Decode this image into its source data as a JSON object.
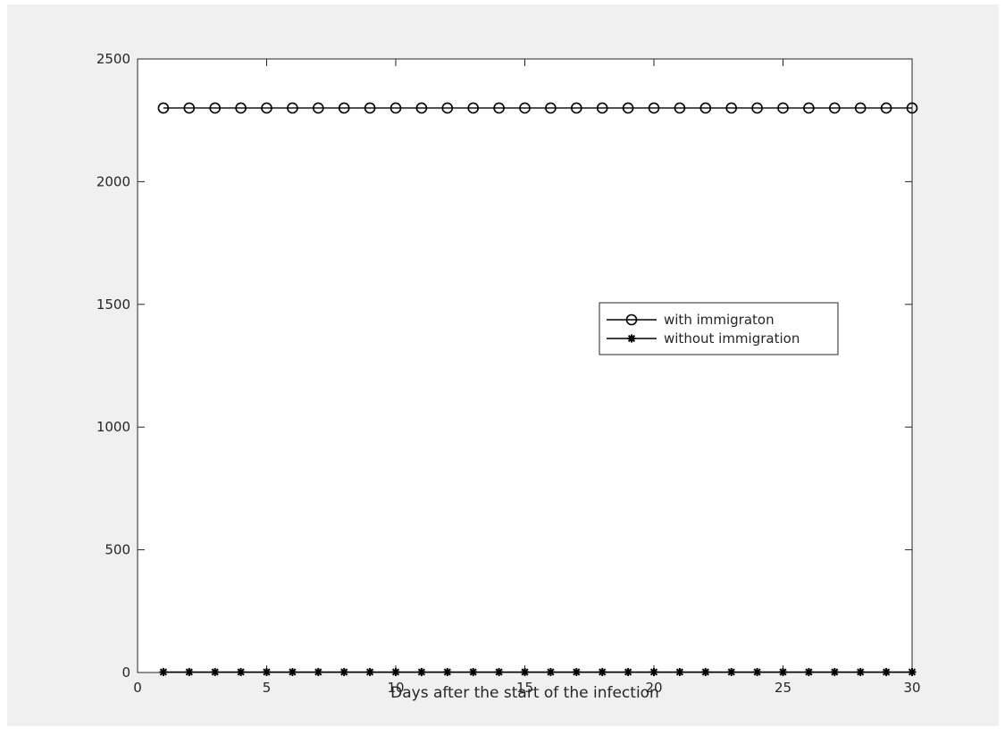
{
  "chart_data": {
    "type": "line",
    "title": "",
    "xlabel": "Days after the start of the infection",
    "ylabel": "",
    "xlim": [
      0,
      30
    ],
    "ylim": [
      0,
      2500
    ],
    "xticks": [
      0,
      5,
      10,
      15,
      20,
      25,
      30
    ],
    "yticks": [
      0,
      500,
      1000,
      1500,
      2000,
      2500
    ],
    "grid": false,
    "legend_position": "center-right",
    "x": [
      1,
      2,
      3,
      4,
      5,
      6,
      7,
      8,
      9,
      10,
      11,
      12,
      13,
      14,
      15,
      16,
      17,
      18,
      19,
      20,
      21,
      22,
      23,
      24,
      25,
      26,
      27,
      28,
      29,
      30
    ],
    "series": [
      {
        "name": "with immigraton",
        "marker": "circle",
        "color": "#000000",
        "values": [
          2300,
          2300,
          2300,
          2300,
          2300,
          2300,
          2300,
          2300,
          2300,
          2300,
          2300,
          2300,
          2300,
          2300,
          2300,
          2300,
          2300,
          2300,
          2300,
          2300,
          2300,
          2300,
          2300,
          2300,
          2300,
          2300,
          2300,
          2300,
          2300,
          2300
        ]
      },
      {
        "name": "without immigration",
        "marker": "asterisk",
        "color": "#000000",
        "values": [
          2,
          2,
          2,
          2,
          2,
          2,
          2,
          2,
          2,
          2,
          2,
          2,
          2,
          2,
          2,
          2,
          2,
          2,
          2,
          2,
          2,
          2,
          2,
          2,
          2,
          2,
          2,
          2,
          2,
          2
        ]
      }
    ]
  }
}
